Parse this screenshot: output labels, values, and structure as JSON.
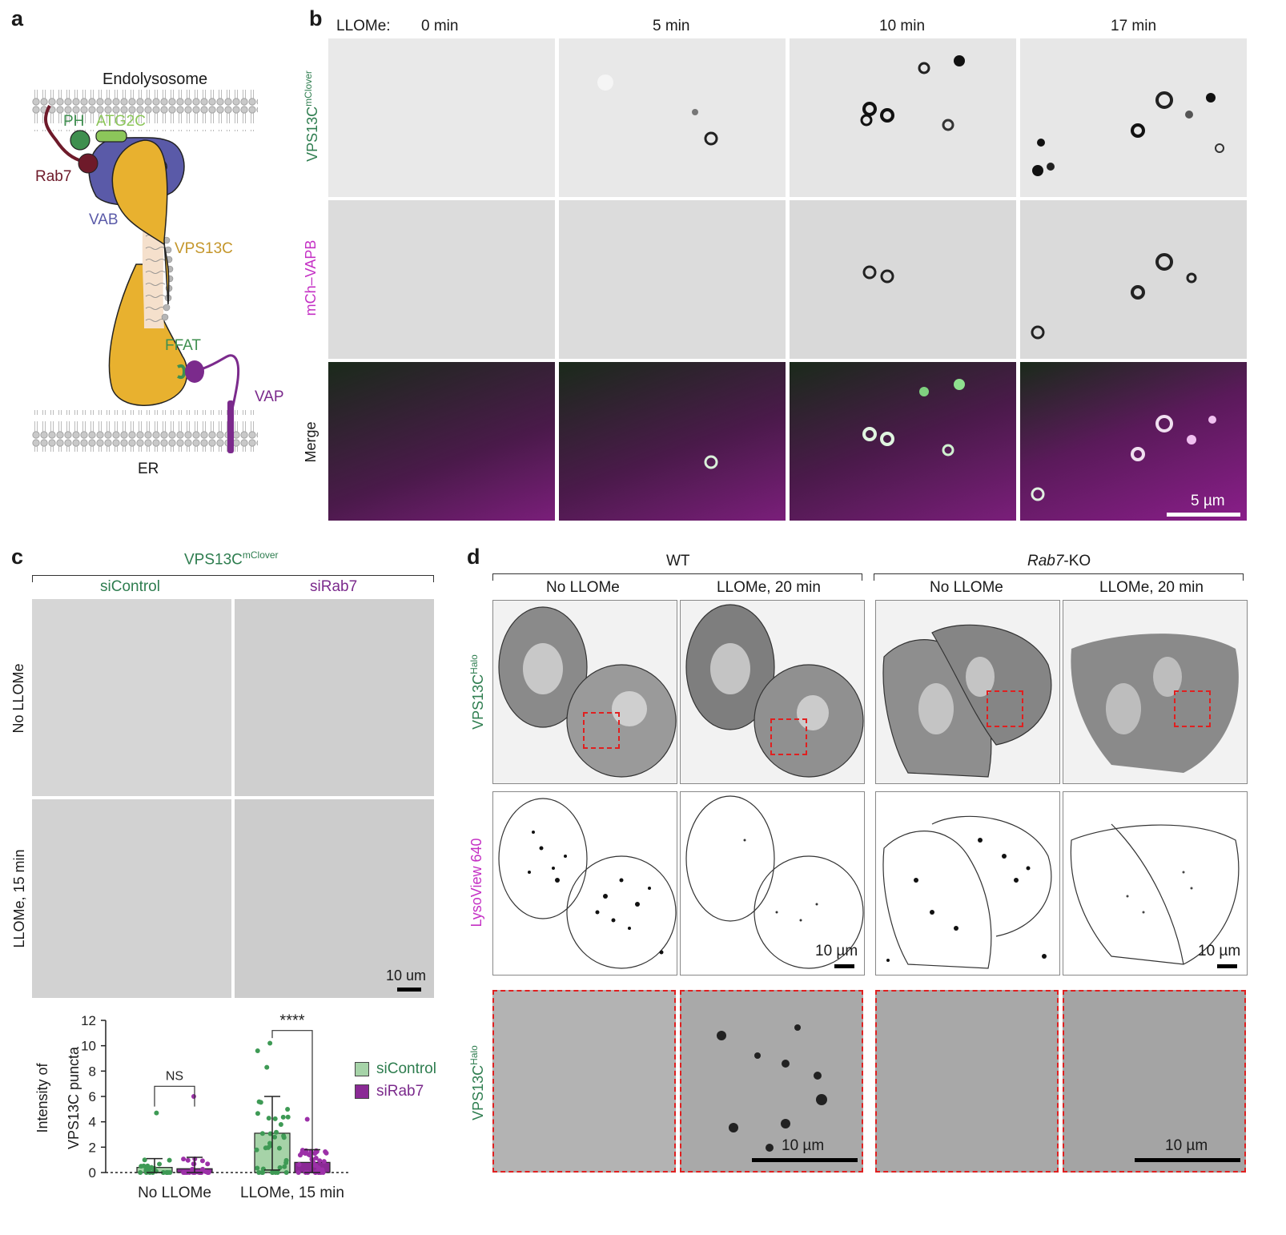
{
  "panel_a": {
    "label": "a",
    "endolysosome": "Endolysosome",
    "er": "ER",
    "ph": "PH",
    "atg2c": "ATG2C",
    "rab7": "Rab7",
    "vab": "VAB",
    "vps13c": "VPS13C",
    "ffat": "FFAT",
    "vap": "VAP"
  },
  "panel_b": {
    "label": "b",
    "llome": "LLOMe:",
    "times": [
      "0 min",
      "5 min",
      "10 min",
      "17 min"
    ],
    "row_vps": "VPS13C",
    "row_vps_sup": "mClover",
    "row_vapb": "mCh–VAPB",
    "row_merge": "Merge",
    "scale": "5 µm"
  },
  "panel_c": {
    "label": "c",
    "title": "VPS13C",
    "title_sup": "mClover",
    "col1": "siControl",
    "col2": "siRab7",
    "row1": "No LLOMe",
    "row2": "LLOMe, 15 min",
    "scale": "10 um",
    "ylabel_1": "Intensity of",
    "ylabel_2": "VPS13C puncta",
    "yticks": [
      "0",
      "2",
      "4",
      "6",
      "8",
      "10",
      "12"
    ],
    "xcat1": "No LLOMe",
    "xcat2": "LLOMe, 15 min",
    "ns": "NS",
    "stars": "****",
    "legend1": "siControl",
    "legend2": "siRab7"
  },
  "panel_d": {
    "label": "d",
    "wt": "WT",
    "ko": "Rab7",
    "ko_suffix": "-KO",
    "cols": [
      "No LLOMe",
      "LLOMe, 20 min",
      "No LLOMe",
      "LLOMe, 20 min"
    ],
    "row1": "VPS13C",
    "row1_sup": "Halo",
    "row2": "LysoView 640",
    "row3": "VPS13C",
    "row3_sup": "Halo",
    "scale": "10 µm"
  },
  "colors": {
    "green": "#2e7d4f",
    "magenta": "#c42fc4",
    "purple": "#7b2a8c",
    "bar_green": "#a6d3a8",
    "bar_purple": "#8a2a95",
    "dark_red": "#6e1a2a",
    "vab_blue": "#5a5aa8",
    "vps_yellow": "#e8b12f"
  },
  "chart_data": {
    "type": "bar",
    "categories": [
      "No LLOMe",
      "LLOMe, 15 min"
    ],
    "series": [
      {
        "name": "siControl",
        "values": [
          0.4,
          3.1
        ],
        "sd": [
          0.7,
          2.9
        ]
      },
      {
        "name": "siRab7",
        "values": [
          0.3,
          0.8
        ],
        "sd": [
          0.9,
          1.0
        ]
      }
    ],
    "ylabel": "Intensity of VPS13C puncta",
    "ylim": [
      0,
      12
    ],
    "yticks": [
      0,
      2,
      4,
      6,
      8,
      10,
      12
    ],
    "annotations": [
      "NS",
      "****"
    ]
  }
}
